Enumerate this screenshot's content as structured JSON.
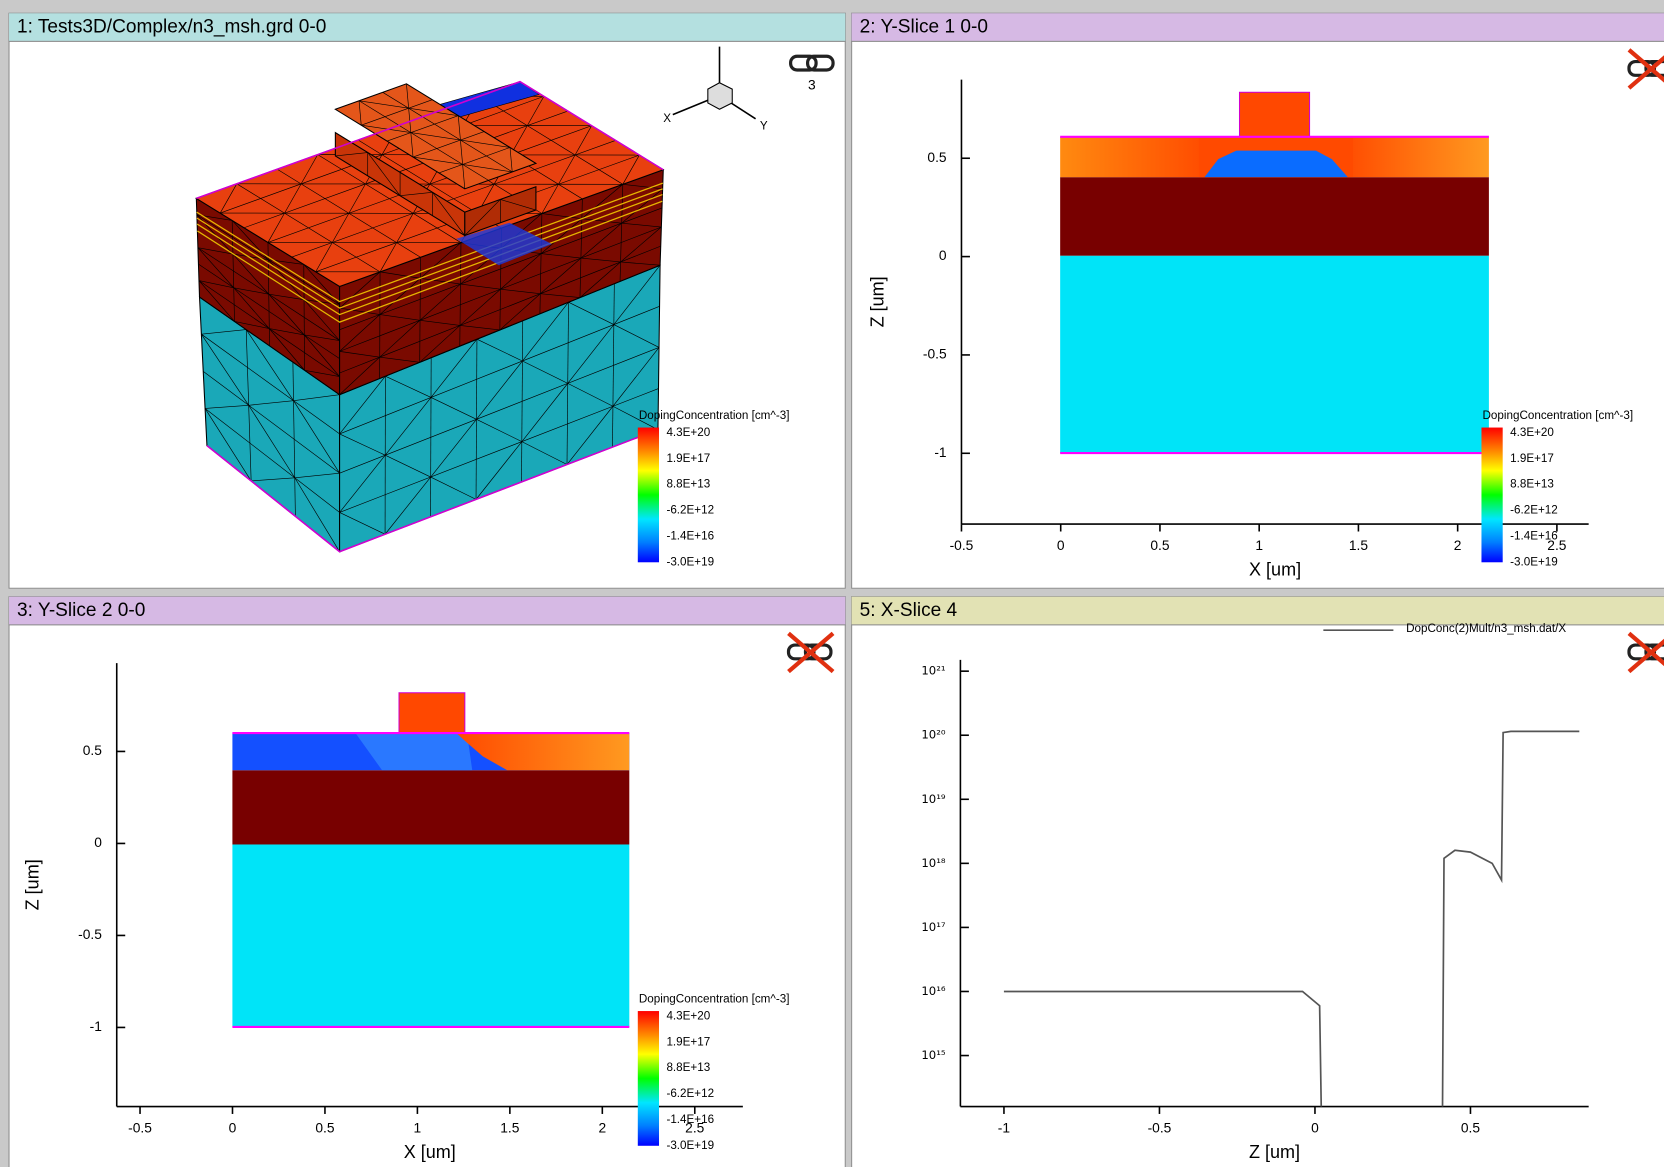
{
  "colorbar": {
    "title": "DopingConcentration [cm^-3]",
    "labels": [
      "4.3E+20",
      "1.9E+17",
      "8.8E+13",
      "-6.2E+12",
      "-1.4E+16",
      "-3.0E+19"
    ]
  },
  "panels": [
    {
      "title": "1: Tests3D/Complex/n3_msh.grd 0-0",
      "triad": {
        "x": "X",
        "y": "Y"
      },
      "link_count": "3"
    },
    {
      "title": "2: Y-Slice 1 0-0",
      "x_label": "X [um]",
      "y_label": "Z [um]",
      "xlim": [
        -0.5,
        2.66
      ],
      "xticks": [
        -0.5,
        0,
        0.5,
        1,
        1.5,
        2,
        2.5
      ],
      "ylim": [
        -1.36,
        0.9
      ],
      "yticks": [
        0.5,
        0,
        -0.5,
        -1
      ]
    },
    {
      "title": "3: Y-Slice 2 0-0",
      "x_label": "X [um]",
      "y_label": "Z [um]",
      "xlim": [
        -0.626,
        2.76
      ],
      "xticks": [
        -0.5,
        0,
        0.5,
        1,
        1.5,
        2,
        2.5
      ],
      "ylim": [
        -1.43,
        0.98
      ],
      "yticks": [
        0.5,
        0,
        -0.5,
        -1
      ]
    },
    {
      "title": "5: X-Slice 4",
      "x_label": "Z [um]",
      "log_y": true,
      "xlim": [
        -1.14,
        0.88
      ],
      "xticks": [
        -1,
        -0.5,
        0,
        0.5
      ],
      "ylim": [
        160000000000000.0,
        1.5e+21
      ],
      "yticks": [
        {
          "value": 1000000000000000.0,
          "label": "10¹⁵"
        },
        {
          "value": 1e+16,
          "label": "10¹⁶"
        },
        {
          "value": 1e+17,
          "label": "10¹⁷"
        },
        {
          "value": 1e+18,
          "label": "10¹⁸"
        },
        {
          "value": 1e+19,
          "label": "10¹⁹"
        },
        {
          "value": 1e+20,
          "label": "10²⁰"
        },
        {
          "value": 1e+21,
          "label": "10²¹"
        }
      ],
      "series": [
        {
          "name": "DopConc(2)Mult/n3_msh.dat/X",
          "color": "#555555",
          "x": [
            -1,
            -0.04,
            0.015,
            0.02,
            null,
            0.41,
            0.415,
            0.45,
            0.5,
            0.57,
            0.6,
            0.605,
            0.63,
            0.85
          ],
          "values": [
            1e+16,
            1e+16,
            6000000000000000.0,
            160000000000000.0,
            null,
            160000000000000.0,
            1.2e+18,
            1.6e+18,
            1.5e+18,
            1e+18,
            5.5e+17,
            1.1e+20,
            1.15e+20,
            1.15e+20
          ]
        }
      ]
    }
  ]
}
